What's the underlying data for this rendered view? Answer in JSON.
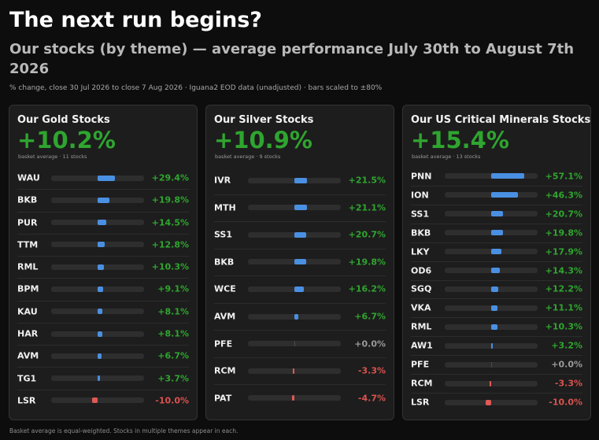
{
  "header": {
    "title": "The next run begins?",
    "subtitle": "Our stocks (by theme) — average performance July 30th to August 7th 2026",
    "note": "% change, close 30 Jul 2026 to close 7 Aug 2026 · Iguana2 EOD data (unadjusted) · bars scaled to ±80%",
    "footnote": "Basket average is equal-weighted. Stocks in multiple themes appear in each."
  },
  "colors": {
    "positive_bar": "#4a90e2",
    "negative_bar": "#e05a55",
    "positive_text": "#2fa52f",
    "negative_text": "#d9534f",
    "zero_text": "#9a9a9a"
  },
  "chart_data": [
    {
      "type": "bar",
      "title": "Our Gold Stocks",
      "average": "+10.2%",
      "meta": "basket average · 11 stocks",
      "xlim": [
        -80,
        80
      ],
      "categories": [
        "WAU",
        "BKB",
        "PUR",
        "TTM",
        "RML",
        "BPM",
        "KAU",
        "HAR",
        "AVM",
        "TG1",
        "LSR"
      ],
      "values": [
        29.4,
        19.8,
        14.5,
        12.8,
        10.3,
        9.1,
        8.1,
        8.1,
        6.7,
        3.7,
        -10.0
      ],
      "labels": [
        "+29.4%",
        "+19.8%",
        "+14.5%",
        "+12.8%",
        "+10.3%",
        "+9.1%",
        "+8.1%",
        "+8.1%",
        "+6.7%",
        "+3.7%",
        "-10.0%"
      ]
    },
    {
      "type": "bar",
      "title": "Our Silver Stocks",
      "average": "+10.9%",
      "meta": "basket average · 9 stocks",
      "xlim": [
        -80,
        80
      ],
      "categories": [
        "IVR",
        "MTH",
        "SS1",
        "BKB",
        "WCE",
        "AVM",
        "PFE",
        "RCM",
        "PAT"
      ],
      "values": [
        21.5,
        21.1,
        20.7,
        19.8,
        16.2,
        6.7,
        0.0,
        -3.3,
        -4.7
      ],
      "labels": [
        "+21.5%",
        "+21.1%",
        "+20.7%",
        "+19.8%",
        "+16.2%",
        "+6.7%",
        "+0.0%",
        "-3.3%",
        "-4.7%"
      ]
    },
    {
      "type": "bar",
      "title": "Our US Critical Minerals Stocks",
      "average": "+15.4%",
      "meta": "basket average · 13 stocks",
      "xlim": [
        -80,
        80
      ],
      "categories": [
        "PNN",
        "ION",
        "SS1",
        "BKB",
        "LKY",
        "OD6",
        "SGQ",
        "VKA",
        "RML",
        "AW1",
        "PFE",
        "RCM",
        "LSR"
      ],
      "values": [
        57.1,
        46.3,
        20.7,
        19.8,
        17.9,
        14.3,
        12.2,
        11.1,
        10.3,
        3.2,
        0.0,
        -3.3,
        -10.0
      ],
      "labels": [
        "+57.1%",
        "+46.3%",
        "+20.7%",
        "+19.8%",
        "+17.9%",
        "+14.3%",
        "+12.2%",
        "+11.1%",
        "+10.3%",
        "+3.2%",
        "+0.0%",
        "-3.3%",
        "-10.0%"
      ]
    }
  ]
}
